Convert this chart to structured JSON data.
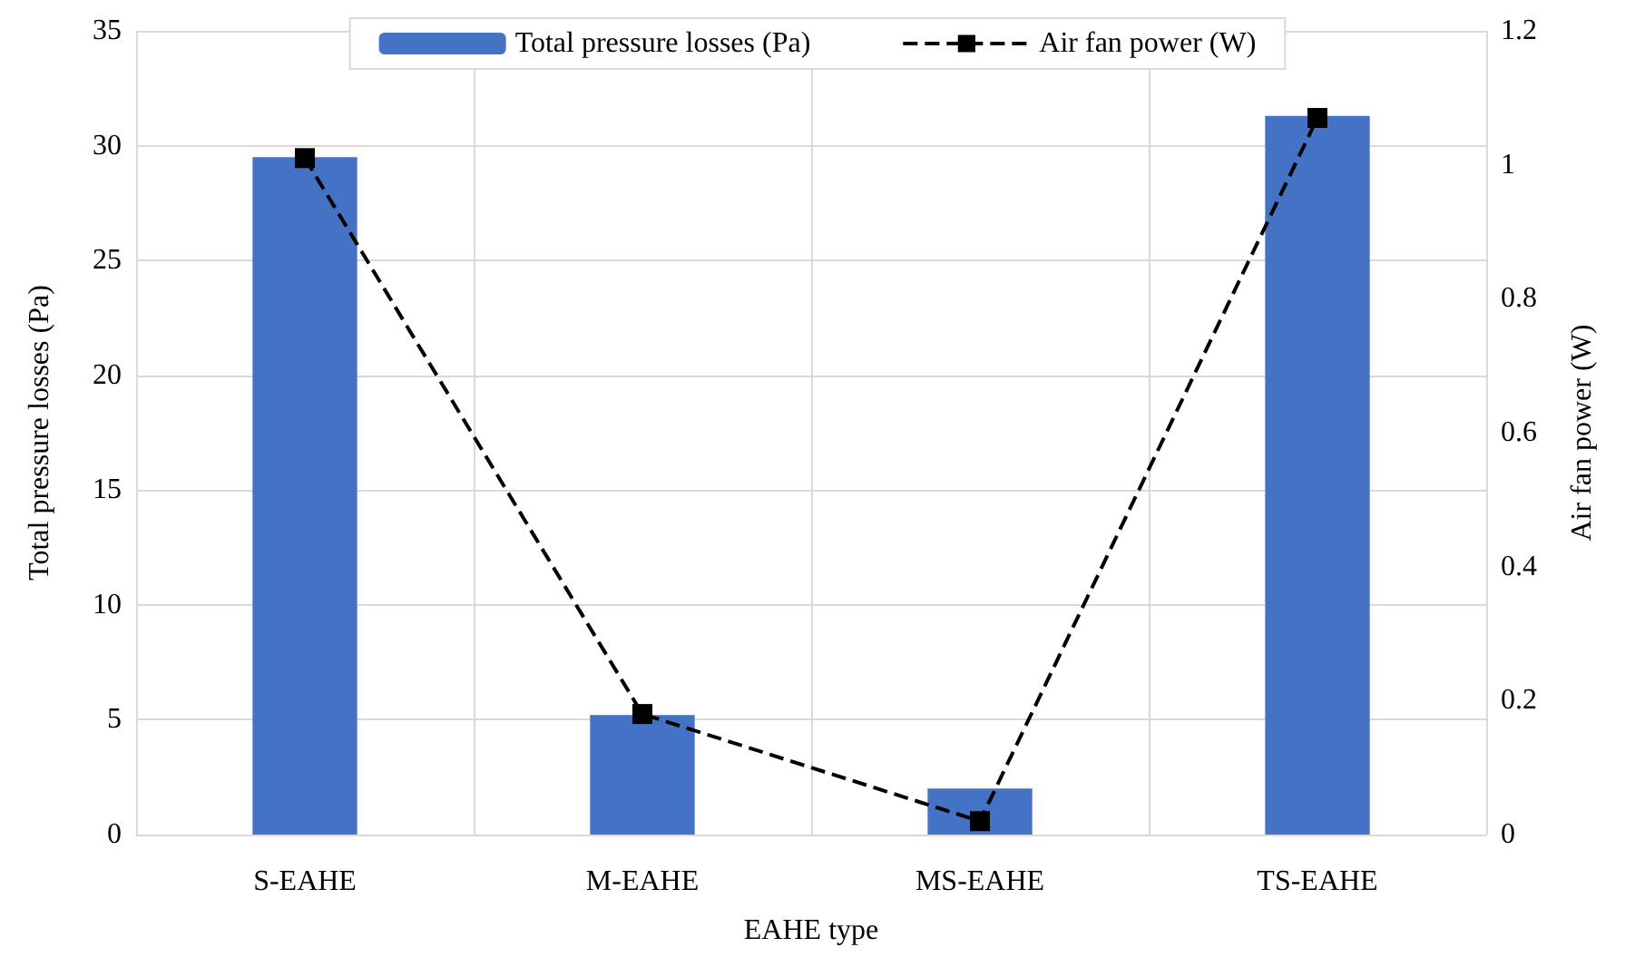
{
  "chart_data": {
    "type": "bar",
    "xlabel": "EAHE type",
    "ylabel": "Total pressure losses (Pa)",
    "y2label": "Air fan power (W)",
    "categories": [
      "S-EAHE",
      "M-EAHE",
      "MS-EAHE",
      "TS-EAHE"
    ],
    "series": [
      {
        "name": "Total pressure losses (Pa)",
        "color": "#4472c4",
        "values": [
          29.5,
          5.2,
          2.0,
          31.3
        ]
      },
      {
        "name": "Air fan power (W)",
        "type": "line",
        "axis": "y2",
        "color": "#000000",
        "marker": "square",
        "line_style": "dashed",
        "values": [
          1.01,
          0.18,
          0.02,
          1.07
        ]
      }
    ],
    "ylim": [
      0,
      35
    ],
    "yticks": [
      0,
      5,
      10,
      15,
      20,
      25,
      30,
      35
    ],
    "y2lim": [
      0,
      1.2
    ],
    "y2ticks": [
      0,
      0.2,
      0.4,
      0.6,
      0.8,
      1,
      1.2
    ],
    "grid": true,
    "legend": "top"
  }
}
